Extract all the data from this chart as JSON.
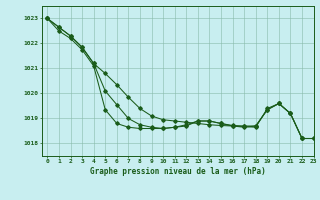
{
  "title": "Graphe pression niveau de la mer (hPa)",
  "bg_color": "#c8eef0",
  "line_color": "#1a5c1a",
  "grid_color": "#88bbaa",
  "xlim": [
    -0.5,
    23
  ],
  "ylim": [
    1017.5,
    1023.5
  ],
  "yticks": [
    1018,
    1019,
    1020,
    1021,
    1022,
    1023
  ],
  "xticks": [
    0,
    1,
    2,
    3,
    4,
    5,
    6,
    7,
    8,
    9,
    10,
    11,
    12,
    13,
    14,
    15,
    16,
    17,
    18,
    19,
    20,
    21,
    22,
    23
  ],
  "line1": {
    "x": [
      0,
      1,
      2,
      3,
      4,
      5,
      6,
      7,
      8,
      9,
      10,
      11,
      12,
      13,
      14,
      15,
      16,
      17,
      18,
      19,
      20,
      21,
      22,
      23
    ],
    "y": [
      1023.0,
      1022.65,
      1022.3,
      1021.85,
      1021.2,
      1020.8,
      1020.35,
      1019.85,
      1019.4,
      1019.1,
      1018.95,
      1018.9,
      1018.85,
      1018.8,
      1018.75,
      1018.72,
      1018.7,
      1018.68,
      1018.65,
      1019.4,
      1019.6,
      1019.2,
      1018.2,
      1018.2
    ]
  },
  "line2": {
    "x": [
      0,
      1,
      2,
      3,
      4,
      5,
      6,
      7,
      8,
      9,
      10,
      11,
      12,
      13,
      14,
      15,
      16,
      17,
      18,
      19,
      20,
      21,
      22,
      23
    ],
    "y": [
      1023.0,
      1022.65,
      1022.3,
      1021.85,
      1021.2,
      1020.1,
      1019.55,
      1019.0,
      1018.75,
      1018.65,
      1018.6,
      1018.65,
      1018.7,
      1018.9,
      1018.9,
      1018.8,
      1018.72,
      1018.7,
      1018.7,
      1019.35,
      1019.6,
      1019.2,
      1018.2,
      1018.2
    ]
  },
  "line3": {
    "x": [
      0,
      1,
      2,
      3,
      4,
      5,
      6,
      7,
      8,
      9,
      10,
      11,
      12,
      13,
      14,
      15,
      16,
      17,
      18,
      19,
      20,
      21,
      22,
      23
    ],
    "y": [
      1023.0,
      1022.5,
      1022.2,
      1021.75,
      1021.1,
      1019.35,
      1018.8,
      1018.65,
      1018.6,
      1018.6,
      1018.6,
      1018.65,
      1018.75,
      1018.9,
      1018.9,
      1018.8,
      1018.7,
      1018.65,
      1018.7,
      1019.35,
      1019.6,
      1019.2,
      1018.2,
      1018.2
    ]
  }
}
